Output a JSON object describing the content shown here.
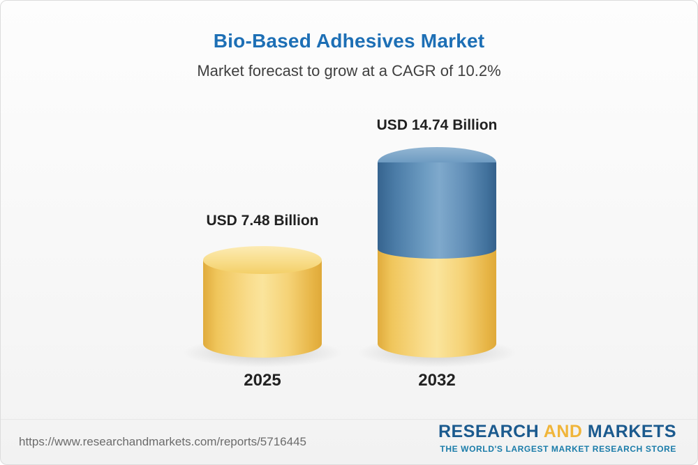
{
  "page": {
    "title": "Bio-Based Adhesives Market",
    "subtitle": "Market forecast to grow at a CAGR of 10.2%"
  },
  "chart_data": {
    "type": "bar",
    "subtype": "3d-cylinder",
    "title": "Bio-Based Adhesives Market",
    "subtitle": "Market forecast to grow at a CAGR of 10.2%",
    "categories": [
      "2025",
      "2032"
    ],
    "values": [
      7.48,
      14.74
    ],
    "unit": "USD Billion",
    "value_labels": [
      "USD 7.48 Billion",
      "USD 14.74 Billion"
    ],
    "cagr_percent": 10.2,
    "legend": "none",
    "grid": "off",
    "colors": {
      "bar_2025": "#F2CB68",
      "bar_2032_base": "#F2CB68",
      "bar_2032_growth": "#5B89B0",
      "title": "#1D6FB5"
    },
    "notes": "2032 cylinder is stacked: yellow base equals the 2025 value, blue top section represents growth to 14.74"
  },
  "footer": {
    "url": "https://www.researchandmarkets.com/reports/5716445",
    "logo": {
      "word1": "RESEARCH",
      "word2": "AND",
      "word3": "MARKETS",
      "tagline": "THE WORLD'S LARGEST MARKET RESEARCH STORE"
    }
  }
}
